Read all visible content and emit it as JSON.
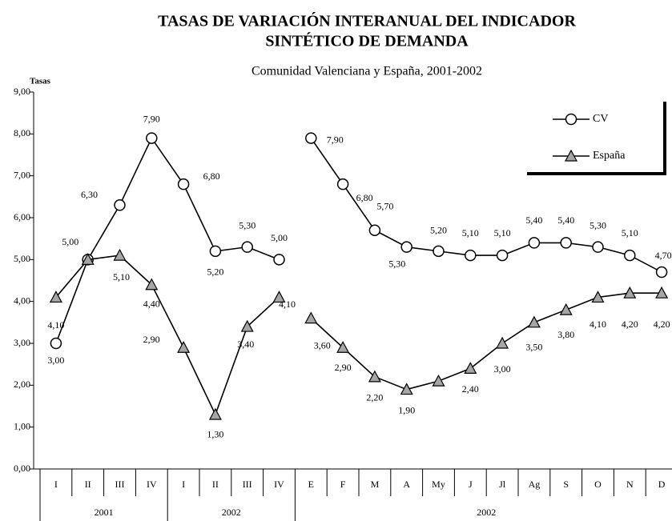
{
  "chart_data": {
    "type": "line",
    "title": [
      "TASAS DE VARIACIÓN INTERANUAL DEL INDICADOR",
      "SINTÉTICO DE DEMANDA"
    ],
    "subtitle": "Comunidad Valenciana y España, 2001-2002",
    "y_label": "Tasas",
    "categories": [
      "I",
      "II",
      "III",
      "IV",
      "I",
      "II",
      "III",
      "IV",
      "E",
      "F",
      "M",
      "A",
      "My",
      "J",
      "Jl",
      "Ag",
      "S",
      "O",
      "N",
      "D"
    ],
    "groups": [
      {
        "label": "2001",
        "span": 4
      },
      {
        "label": "2002",
        "span": 4
      },
      {
        "label": "2002",
        "span": 12
      }
    ],
    "break_before": [
      8
    ],
    "series": [
      {
        "name": "CV",
        "marker": "circle",
        "color": "#ffffff",
        "values": [
          3.0,
          5.0,
          6.3,
          7.9,
          6.8,
          5.2,
          5.3,
          5.0,
          7.9,
          6.8,
          5.7,
          5.3,
          5.2,
          5.1,
          5.1,
          5.4,
          5.4,
          5.3,
          5.1,
          4.7
        ],
        "value_labels": [
          "3,00",
          "5,00",
          "6,30",
          "7,90",
          "6,80",
          "5,20",
          "5,30",
          "5,00",
          "7,90",
          "6,80",
          "5,70",
          "5,30",
          "5,20",
          "5,10",
          "5,10",
          "5,40",
          "5,40",
          "5,30",
          "5,10",
          "4,70"
        ]
      },
      {
        "name": "España",
        "marker": "triangle",
        "color": "#a6a6a6",
        "values": [
          4.1,
          5.0,
          5.1,
          4.4,
          2.9,
          1.3,
          3.4,
          4.1,
          3.6,
          2.9,
          2.2,
          1.9,
          2.1,
          2.4,
          3.0,
          3.5,
          3.8,
          4.1,
          4.2,
          4.2
        ],
        "value_labels": [
          "4,10",
          null,
          "5,10",
          "4,40",
          "2,90",
          "1,30",
          "3,40",
          "4,10",
          "3,60",
          "2,90",
          "2,20",
          "1,90",
          null,
          "2,40",
          "3,00",
          "3,50",
          "3,80",
          "4,10",
          "4,20",
          "4,20"
        ]
      }
    ],
    "ylim": [
      0,
      9
    ],
    "yticks": [
      {
        "value": 0,
        "label": "0,00"
      },
      {
        "value": 1,
        "label": "1,00"
      },
      {
        "value": 2,
        "label": "2,00"
      },
      {
        "value": 3,
        "label": "3,00"
      },
      {
        "value": 4,
        "label": "4,00"
      },
      {
        "value": 5,
        "label": "5,00"
      },
      {
        "value": 6,
        "label": "6,00"
      },
      {
        "value": 7,
        "label": "7,00"
      },
      {
        "value": 8,
        "label": "8,00"
      },
      {
        "value": 9,
        "label": "9,00"
      }
    ],
    "grid": false,
    "legend": "top-right"
  }
}
